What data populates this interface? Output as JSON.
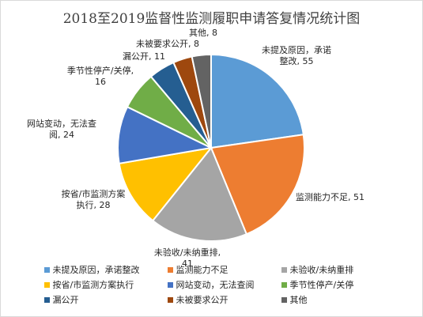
{
  "chart_data": {
    "type": "pie",
    "title": "2018至2019监督性监测履职申请答复情况统计图",
    "slices": [
      {
        "name": "未提及原因，承诺整改",
        "value": 55,
        "color": "#5b9bd5"
      },
      {
        "name": "监测能力不足",
        "value": 51,
        "color": "#ed7d31"
      },
      {
        "name": "未验收/未纳重排",
        "value": 41,
        "color": "#a5a5a5"
      },
      {
        "name": "按省/市监测方案执行",
        "value": 28,
        "color": "#ffc000"
      },
      {
        "name": "网站变动，无法查阅",
        "value": 24,
        "color": "#4472c4"
      },
      {
        "name": "季节性停产/关停",
        "value": 16,
        "color": "#70ad47"
      },
      {
        "name": "漏公开",
        "value": 11,
        "color": "#255e91"
      },
      {
        "name": "未被要求公开",
        "value": 8,
        "color": "#9e480e"
      },
      {
        "name": "其他",
        "value": 8,
        "color": "#636363"
      }
    ],
    "data_labels": [
      [
        "未提及原因，承诺",
        "整改, 55"
      ],
      [
        "监测能力不足, 51"
      ],
      [
        "未验收/未纳重排,",
        "41"
      ],
      [
        "按省/市监测方案",
        "执行, 28"
      ],
      [
        "网站变动，无法查",
        "阅, 24"
      ],
      [
        "季节性停产/关停,",
        "16"
      ],
      [
        "漏公开, 11"
      ],
      [
        "未被要求公开, 8"
      ],
      [
        "其他, 8"
      ]
    ],
    "legend_position": "bottom"
  }
}
